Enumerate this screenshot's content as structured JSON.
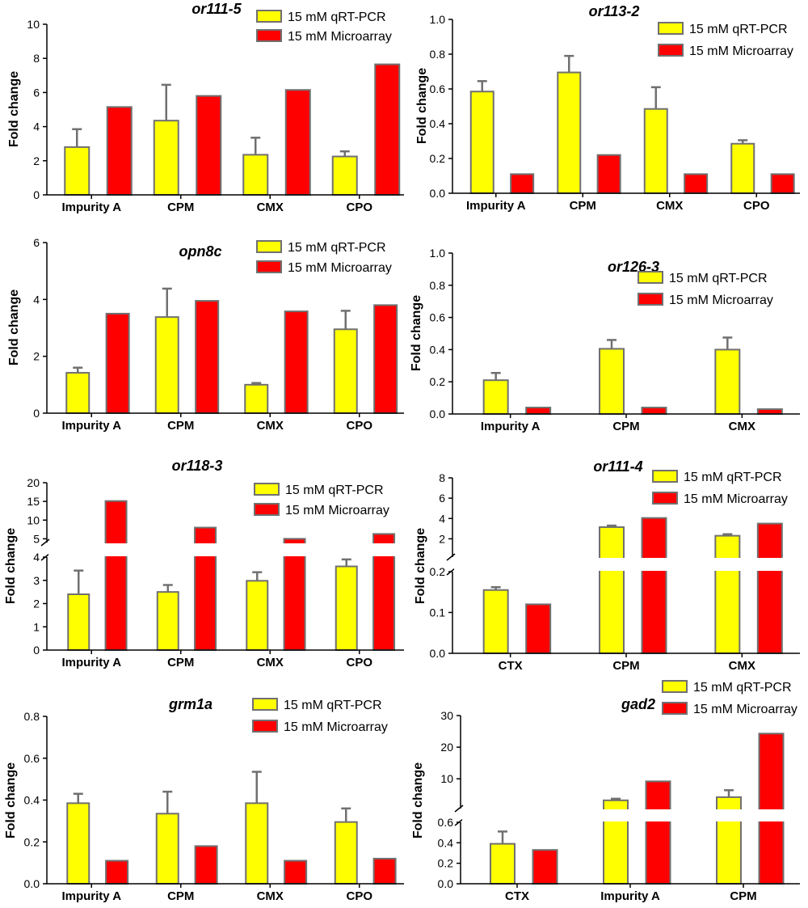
{
  "colors": {
    "qrt": "#ffff00",
    "micro": "#ff0000",
    "edge": "#707070",
    "axis": "#000000"
  },
  "legend": {
    "qrt": "15 mM qRT-PCR",
    "micro": "15 mM Microarray"
  },
  "chart_data": [
    {
      "type": "bar",
      "title": "or111-5",
      "ylabel": "Fold change",
      "categories": [
        "Impurity A",
        "CPM",
        "CMX",
        "CPO"
      ],
      "ylim": [
        0,
        10
      ],
      "yticks": [
        0,
        2,
        4,
        6,
        8,
        10
      ],
      "series": [
        {
          "name": "15 mM qRT-PCR",
          "values": [
            2.8,
            4.35,
            2.35,
            2.25
          ],
          "errors": [
            1.05,
            2.1,
            1.0,
            0.3
          ]
        },
        {
          "name": "15 mM Microarray",
          "values": [
            5.15,
            5.8,
            6.15,
            7.65
          ]
        }
      ]
    },
    {
      "type": "bar",
      "title": "or113-2",
      "ylabel": "Fold change",
      "categories": [
        "Impurity A",
        "CPM",
        "CMX",
        "CPO"
      ],
      "ylim": [
        0,
        1.0
      ],
      "yticks": [
        0.0,
        0.2,
        0.4,
        0.6,
        0.8,
        1.0
      ],
      "series": [
        {
          "name": "15 mM qRT-PCR",
          "values": [
            0.585,
            0.695,
            0.485,
            0.285
          ],
          "errors": [
            0.06,
            0.095,
            0.125,
            0.02
          ]
        },
        {
          "name": "15 mM Microarray",
          "values": [
            0.11,
            0.22,
            0.11,
            0.11
          ]
        }
      ]
    },
    {
      "type": "bar",
      "title": "opn8c",
      "ylabel": "Fold change",
      "categories": [
        "Impurity A",
        "CPM",
        "CMX",
        "CPO"
      ],
      "ylim": [
        0,
        6
      ],
      "yticks": [
        0,
        2,
        4,
        6
      ],
      "series": [
        {
          "name": "15 mM qRT-PCR",
          "values": [
            1.42,
            3.38,
            1.0,
            2.95
          ],
          "errors": [
            0.18,
            1.0,
            0.06,
            0.65
          ]
        },
        {
          "name": "15 mM Microarray",
          "values": [
            3.5,
            3.95,
            3.58,
            3.8
          ]
        }
      ]
    },
    {
      "type": "bar",
      "title": "or126-3",
      "ylabel": "Fold change",
      "categories": [
        "Impurity A",
        "CPM",
        "CMX"
      ],
      "ylim": [
        0,
        1.0
      ],
      "yticks": [
        0.0,
        0.2,
        0.4,
        0.6,
        0.8,
        1.0
      ],
      "series": [
        {
          "name": "15 mM qRT-PCR",
          "values": [
            0.21,
            0.405,
            0.4
          ],
          "errors": [
            0.045,
            0.055,
            0.075
          ]
        },
        {
          "name": "15 mM Microarray",
          "values": [
            0.04,
            0.04,
            0.03
          ]
        }
      ]
    },
    {
      "type": "bar",
      "title": "or118-3",
      "ylabel": "Fold change",
      "categories": [
        "Impurity A",
        "CPM",
        "CMX",
        "CPO"
      ],
      "broken_axis": {
        "lower": [
          0,
          4
        ],
        "upper": [
          4,
          20
        ],
        "lower_ticks": [
          0,
          1,
          2,
          3,
          4
        ],
        "upper_ticks": [
          5,
          10,
          15,
          20
        ]
      },
      "series": [
        {
          "name": "15 mM qRT-PCR",
          "values": [
            2.4,
            2.5,
            2.98,
            3.6
          ],
          "errors": [
            1.02,
            0.3,
            0.37,
            0.3
          ]
        },
        {
          "name": "15 mM Microarray",
          "values": [
            15.1,
            8.0,
            5.0,
            6.3
          ]
        }
      ]
    },
    {
      "type": "bar",
      "title": "or111-4",
      "ylabel": "Fold change",
      "categories": [
        "CTX",
        "CPM",
        "CMX"
      ],
      "broken_axis": {
        "lower": [
          0,
          0.2
        ],
        "upper": [
          0.2,
          8
        ],
        "lower_ticks": [
          0.0,
          0.1,
          0.2
        ],
        "upper_ticks": [
          2,
          4,
          6,
          8
        ]
      },
      "series": [
        {
          "name": "15 mM qRT-PCR",
          "values": [
            0.155,
            3.15,
            2.3
          ],
          "errors": [
            0.007,
            0.15,
            0.15
          ]
        },
        {
          "name": "15 mM Microarray",
          "values": [
            0.12,
            4.05,
            3.5
          ]
        }
      ]
    },
    {
      "type": "bar",
      "title": "grm1a",
      "ylabel": "Fold change",
      "categories": [
        "Impurity A",
        "CPM",
        "CMX",
        "CPO"
      ],
      "ylim": [
        0,
        0.8
      ],
      "yticks": [
        0.0,
        0.2,
        0.4,
        0.6,
        0.8
      ],
      "series": [
        {
          "name": "15 mM qRT-PCR",
          "values": [
            0.385,
            0.335,
            0.385,
            0.295
          ],
          "errors": [
            0.045,
            0.105,
            0.15,
            0.065
          ]
        },
        {
          "name": "15 mM Microarray",
          "values": [
            0.11,
            0.18,
            0.11,
            0.12
          ]
        }
      ]
    },
    {
      "type": "bar",
      "title": "gad2",
      "ylabel": "Fold change",
      "categories": [
        "CTX",
        "Impurity A",
        "CPM"
      ],
      "broken_axis": {
        "lower": [
          0,
          0.6
        ],
        "upper": [
          0.6,
          30
        ],
        "lower_ticks": [
          0.0,
          0.2,
          0.4,
          0.6
        ],
        "upper_ticks": [
          10,
          20,
          30
        ]
      },
      "series": [
        {
          "name": "15 mM qRT-PCR",
          "values": [
            0.39,
            3.2,
            4.2
          ],
          "errors": [
            0.12,
            0.5,
            2.2
          ]
        },
        {
          "name": "15 mM Microarray",
          "values": [
            0.33,
            9.2,
            24.3
          ]
        }
      ]
    }
  ]
}
